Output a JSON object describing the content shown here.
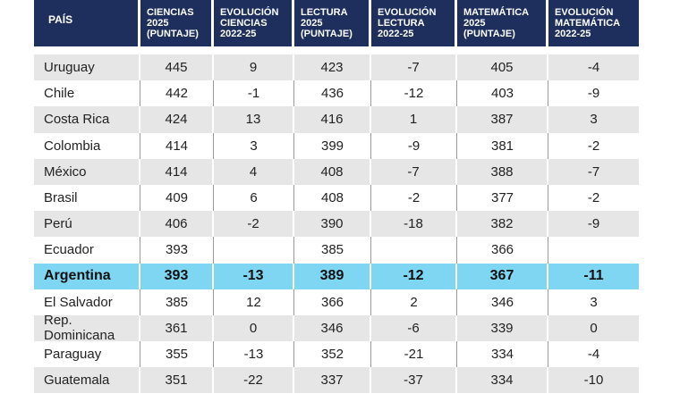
{
  "headers": [
    "PAÍS",
    "CIENCIAS\n2025\n(PUNTAJE)",
    "EVOLUCIÓN\nCIENCIAS\n2022-25",
    "LECTURA\n2025\n(PUNTAJE)",
    "EVOLUCIÓN\nLECTURA\n2022-25",
    "MATEMÁTICA\n2025\n(PUNTAJE)",
    "EVOLUCIÓN\nMATEMÁTICA\n2022-25"
  ],
  "rows": [
    {
      "pais": "Uruguay",
      "ciencias": "445",
      "evo_ciencias": "9",
      "lectura": "423",
      "evo_lectura": "-7",
      "matematica": "405",
      "evo_matematica": "-4"
    },
    {
      "pais": "Chile",
      "ciencias": "442",
      "evo_ciencias": "-1",
      "lectura": "436",
      "evo_lectura": "-12",
      "matematica": "403",
      "evo_matematica": "-9"
    },
    {
      "pais": "Costa Rica",
      "ciencias": "424",
      "evo_ciencias": "13",
      "lectura": "416",
      "evo_lectura": "1",
      "matematica": "387",
      "evo_matematica": "3"
    },
    {
      "pais": "Colombia",
      "ciencias": "414",
      "evo_ciencias": "3",
      "lectura": "399",
      "evo_lectura": "-9",
      "matematica": "381",
      "evo_matematica": "-2"
    },
    {
      "pais": "México",
      "ciencias": "414",
      "evo_ciencias": "4",
      "lectura": "408",
      "evo_lectura": "-7",
      "matematica": "388",
      "evo_matematica": "-7"
    },
    {
      "pais": "Brasil",
      "ciencias": "409",
      "evo_ciencias": "6",
      "lectura": "408",
      "evo_lectura": "-2",
      "matematica": "377",
      "evo_matematica": "-2"
    },
    {
      "pais": "Perú",
      "ciencias": "406",
      "evo_ciencias": "-2",
      "lectura": "390",
      "evo_lectura": "-18",
      "matematica": "382",
      "evo_matematica": "-9"
    },
    {
      "pais": "Ecuador",
      "ciencias": "393",
      "evo_ciencias": "",
      "lectura": "385",
      "evo_lectura": "",
      "matematica": "366",
      "evo_matematica": ""
    },
    {
      "pais": "Argentina",
      "ciencias": "393",
      "evo_ciencias": "-13",
      "lectura": "389",
      "evo_lectura": "-12",
      "matematica": "367",
      "evo_matematica": "-11",
      "highlight": true
    },
    {
      "pais": "El Salvador",
      "ciencias": "385",
      "evo_ciencias": "12",
      "lectura": "366",
      "evo_lectura": "2",
      "matematica": "346",
      "evo_matematica": "3"
    },
    {
      "pais": "Rep. Dominicana",
      "ciencias": "361",
      "evo_ciencias": "0",
      "lectura": "346",
      "evo_lectura": "-6",
      "matematica": "339",
      "evo_matematica": "0"
    },
    {
      "pais": "Paraguay",
      "ciencias": "355",
      "evo_ciencias": "-13",
      "lectura": "352",
      "evo_lectura": "-21",
      "matematica": "334",
      "evo_matematica": "-4"
    },
    {
      "pais": "Guatemala",
      "ciencias": "351",
      "evo_ciencias": "-22",
      "lectura": "337",
      "evo_lectura": "-37",
      "matematica": "334",
      "evo_matematica": "-10"
    }
  ]
}
